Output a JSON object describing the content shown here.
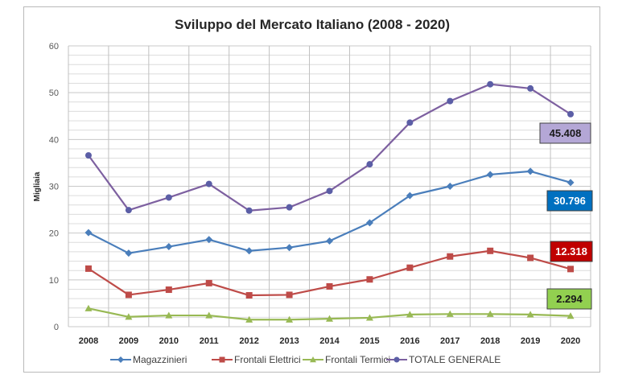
{
  "chart_data": {
    "type": "line",
    "title": "Sviluppo del Mercato Italiano (2008 - 2020)",
    "xlabel": "",
    "ylabel": "Migliaia",
    "ylim": [
      0,
      60
    ],
    "yticks": [
      0,
      10,
      20,
      30,
      40,
      50,
      60
    ],
    "minor_grid_step": 2,
    "grid": true,
    "legend_position": "bottom",
    "categories": [
      "2008",
      "2009",
      "2010",
      "2011",
      "2012",
      "2013",
      "2014",
      "2015",
      "2016",
      "2017",
      "2018",
      "2019",
      "2020"
    ],
    "series": [
      {
        "name": "Magazzinieri",
        "color": "#4a7ebb",
        "marker": "diamond",
        "values": [
          20.1,
          15.7,
          17.1,
          18.6,
          16.2,
          16.9,
          18.3,
          22.2,
          28.0,
          30.0,
          32.5,
          33.2,
          30.796
        ],
        "end_label": "30.796",
        "label_bg": "#0070c0",
        "label_fg": "#ffffff"
      },
      {
        "name": "Frontali Elettrici",
        "color": "#be4b48",
        "marker": "square",
        "values": [
          12.4,
          6.8,
          7.9,
          9.3,
          6.7,
          6.8,
          8.6,
          10.1,
          12.6,
          15.0,
          16.2,
          14.7,
          12.318
        ],
        "end_label": "12.318",
        "label_bg": "#c00000",
        "label_fg": "#ffffff"
      },
      {
        "name": "Frontali Termici",
        "color": "#98b954",
        "marker": "triangle",
        "values": [
          3.9,
          2.1,
          2.4,
          2.4,
          1.5,
          1.5,
          1.7,
          1.9,
          2.6,
          2.7,
          2.7,
          2.6,
          2.294
        ],
        "end_label": "2.294",
        "label_bg": "#92d050",
        "label_fg": "#1a1a1a"
      },
      {
        "name": "TOTALE GENERALE",
        "color": "#7d60a0",
        "marker": "circle",
        "marker_color": "#5b5ea6",
        "values": [
          36.6,
          24.9,
          27.6,
          30.5,
          24.8,
          25.5,
          29.0,
          34.7,
          43.6,
          48.2,
          51.8,
          50.9,
          45.408
        ],
        "end_label": "45.408",
        "label_bg": "#b4a7d6",
        "label_fg": "#1a1a1a"
      }
    ]
  }
}
